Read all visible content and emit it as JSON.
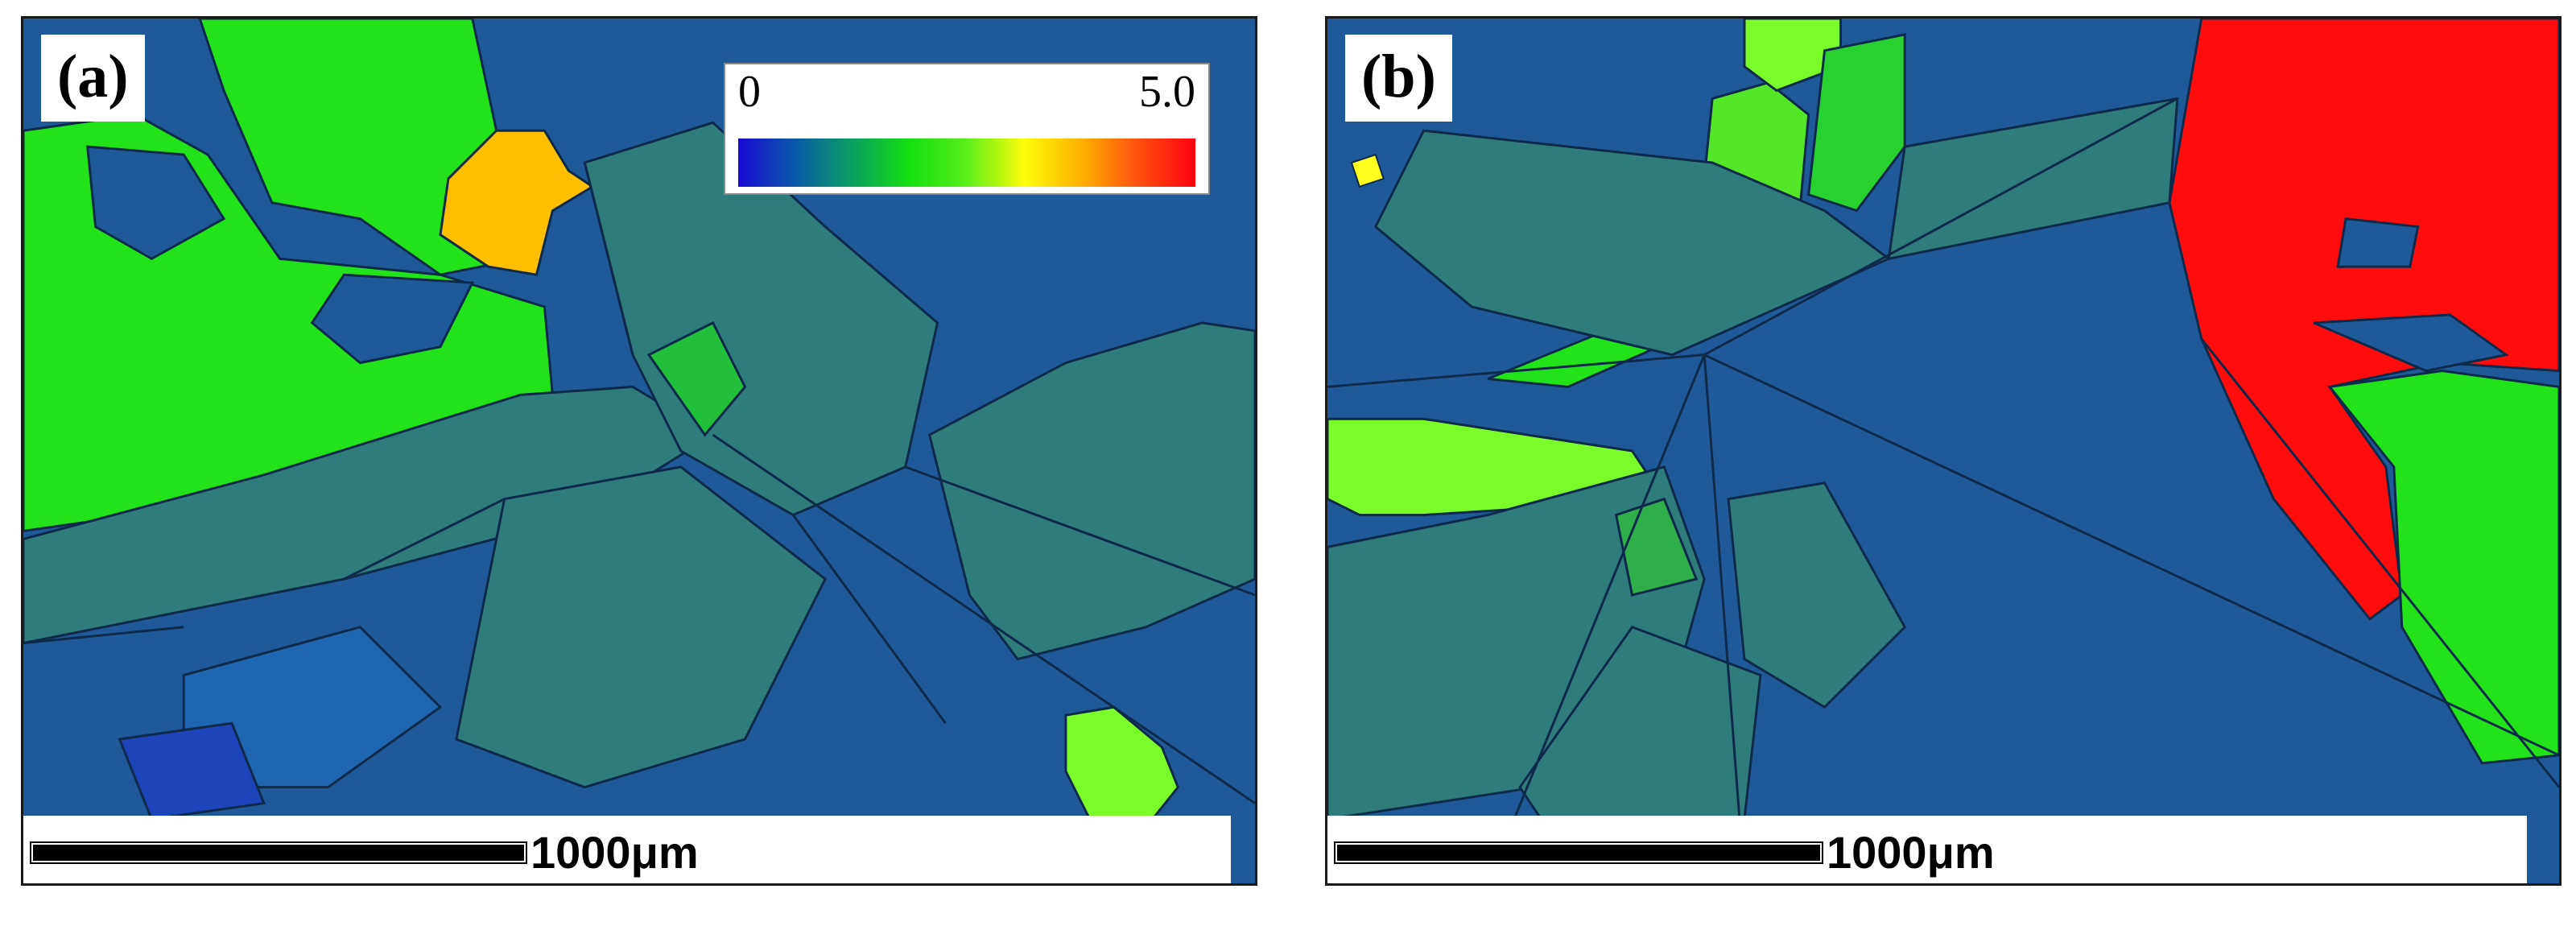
{
  "panels": [
    {
      "label": "(a)",
      "scale_label": "1000μm"
    },
    {
      "label": "(b)",
      "scale_label": "1000μm"
    }
  ],
  "colorbar": {
    "min": "0",
    "max": "5.0",
    "colors": [
      "#1a0ad6",
      "#0a5aa8",
      "#0aa060",
      "#13e010",
      "#5aee1a",
      "#fdfd0a",
      "#ffb000",
      "#ff5010",
      "#ff0010"
    ]
  },
  "colors": {
    "matrix_blue": "#1e5a9a",
    "teal": "#2f7d7a",
    "green": "#22e31a",
    "lime": "#7cfb2a",
    "orange": "#ffbf00",
    "red": "#ff0d0d",
    "boundary": "#0d2a4a"
  }
}
